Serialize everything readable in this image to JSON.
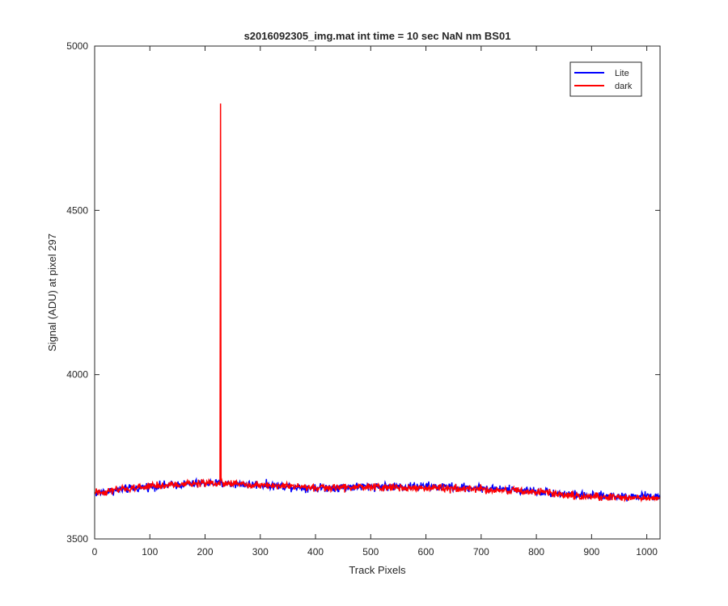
{
  "chart_data": {
    "type": "line",
    "title": "s2016092305_img.mat int time = 10 sec  NaN nm BS01",
    "xlabel": "Track Pixels",
    "ylabel": "Signal (ADU) at pixel 297",
    "xlim": [
      0,
      1024
    ],
    "ylim": [
      3500,
      5000
    ],
    "x_ticks": [
      0,
      100,
      200,
      300,
      400,
      500,
      600,
      700,
      800,
      900,
      1000
    ],
    "y_ticks": [
      3500,
      4000,
      4500,
      5000
    ],
    "x_tick_labels": [
      "0",
      "100",
      "200",
      "300",
      "400",
      "500",
      "600",
      "700",
      "800",
      "900",
      "1000"
    ],
    "y_tick_labels": [
      "3500",
      "4000",
      "4500",
      "5000"
    ],
    "grid": false,
    "legend_position": "top-right",
    "series": [
      {
        "name": "Lite",
        "color": "#0000ff",
        "x_range": [
          1,
          1024
        ],
        "anchor_x": [
          0,
          100,
          200,
          300,
          400,
          500,
          600,
          700,
          800,
          900,
          1024
        ],
        "anchor_y": [
          3640,
          3660,
          3670,
          3665,
          3655,
          3660,
          3660,
          3655,
          3645,
          3630,
          3630
        ],
        "noise_amplitude": 12
      },
      {
        "name": "dark",
        "color": "#ff0000",
        "x_range": [
          1,
          1024
        ],
        "anchor_x": [
          0,
          100,
          200,
          300,
          400,
          500,
          600,
          700,
          800,
          900,
          1024
        ],
        "anchor_y": [
          3640,
          3660,
          3670,
          3665,
          3655,
          3658,
          3655,
          3652,
          3642,
          3628,
          3625
        ],
        "noise_amplitude": 11,
        "spikes": [
          {
            "x": 228,
            "y": 4825
          }
        ]
      }
    ]
  }
}
